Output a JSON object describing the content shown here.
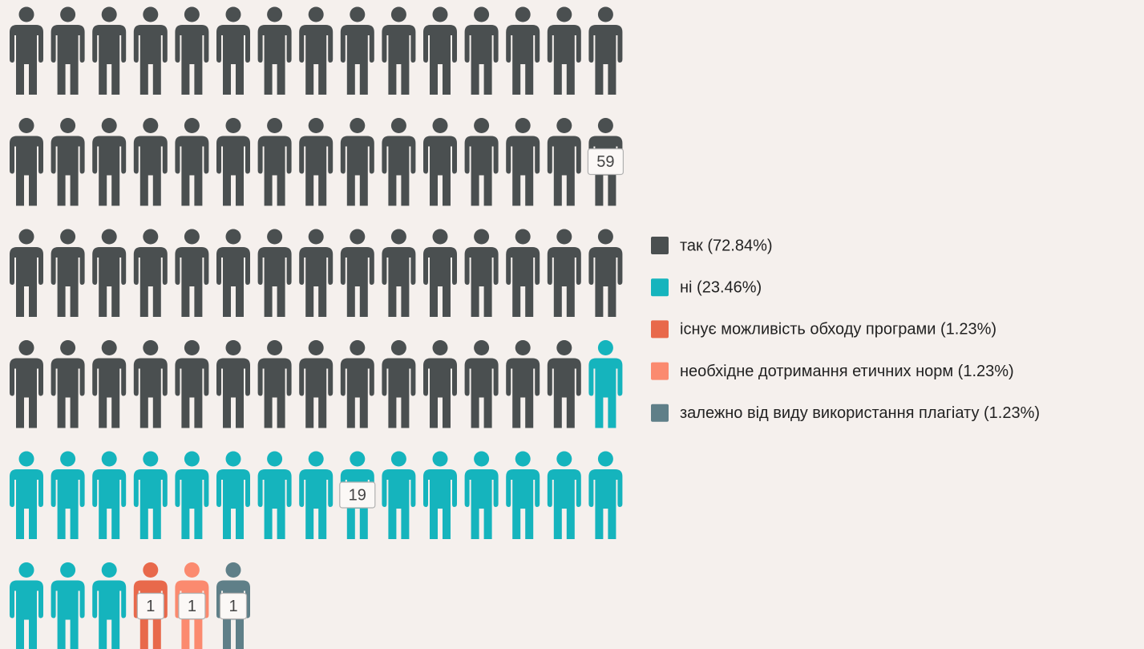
{
  "chart_data": {
    "type": "pictograph",
    "categories": [
      "так (72.84%)",
      "ні (23.46%)",
      "існує можливість обходу програми (1.23%)",
      "необхідне дотримання етичних норм (1.23%)",
      "залежно від виду використання плагіату (1.23%)"
    ],
    "values": [
      59,
      19,
      1,
      1,
      1
    ],
    "colors": [
      "#4a4f50",
      "#15b4bd",
      "#e8694b",
      "#fb8a6f",
      "#5f7f88"
    ],
    "per_row": 15
  }
}
